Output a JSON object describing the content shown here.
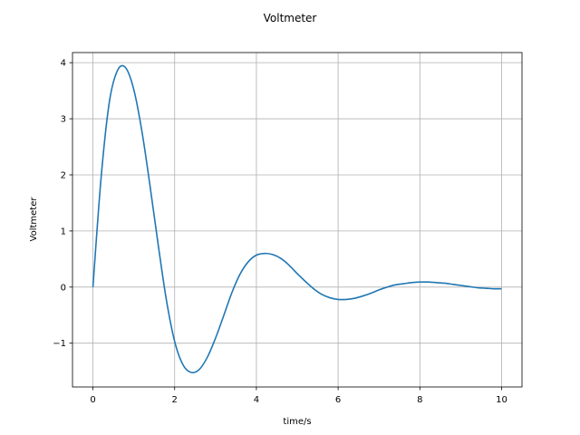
{
  "figure": {
    "title": "Voltmeter"
  },
  "chart_data": {
    "type": "line",
    "title": "Voltmeter",
    "xlabel": "time/s",
    "ylabel": "Voltmeter",
    "xlim": [
      -0.5,
      10.5
    ],
    "ylim": [
      -1.78,
      4.18
    ],
    "grid": true,
    "x_ticks": [
      0,
      2,
      4,
      6,
      8,
      10
    ],
    "x_tick_labels": [
      "0",
      "2",
      "4",
      "6",
      "8",
      "10"
    ],
    "y_ticks": [
      -1,
      0,
      1,
      2,
      3,
      4
    ],
    "y_tick_labels": [
      "−1",
      "0",
      "1",
      "2",
      "3",
      "4"
    ],
    "series": [
      {
        "color": "#1f77b4",
        "x": [
          0,
          0.2,
          0.4,
          0.6,
          0.8,
          1.0,
          1.2,
          1.4,
          1.6,
          1.8,
          2.0,
          2.2,
          2.4,
          2.6,
          2.8,
          3.0,
          3.2,
          3.4,
          3.6,
          3.8,
          4.0,
          4.2,
          4.4,
          4.6,
          4.8,
          5.0,
          5.2,
          5.4,
          5.6,
          5.8,
          6.0,
          6.2,
          6.4,
          6.6,
          6.8,
          7.0,
          7.2,
          7.4,
          7.6,
          7.8,
          8.0,
          8.2,
          8.4,
          8.6,
          8.8,
          9.0,
          9.2,
          9.4,
          9.6,
          9.8,
          10.0
        ],
        "y": [
          0.0,
          1.95,
          3.29,
          3.86,
          3.91,
          3.52,
          2.77,
          1.79,
          0.74,
          -0.24,
          -0.97,
          -1.38,
          -1.52,
          -1.47,
          -1.25,
          -0.91,
          -0.51,
          -0.1,
          0.23,
          0.45,
          0.57,
          0.6,
          0.58,
          0.51,
          0.39,
          0.24,
          0.1,
          -0.03,
          -0.13,
          -0.19,
          -0.22,
          -0.22,
          -0.2,
          -0.16,
          -0.11,
          -0.05,
          0.0,
          0.04,
          0.06,
          0.08,
          0.09,
          0.09,
          0.08,
          0.07,
          0.05,
          0.03,
          0.01,
          -0.01,
          -0.02,
          -0.03,
          -0.03
        ]
      }
    ]
  }
}
